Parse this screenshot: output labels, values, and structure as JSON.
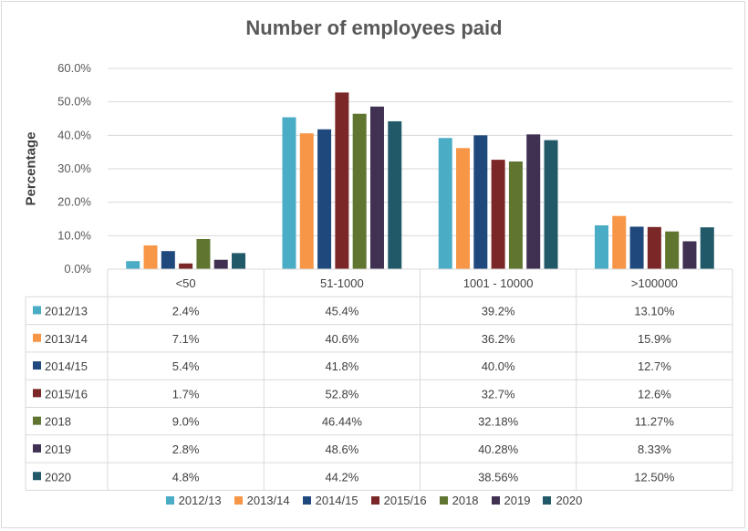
{
  "chart_data": {
    "type": "bar",
    "title": "Number of employees paid",
    "ylabel": "Percentage",
    "ylim": [
      0,
      60
    ],
    "yticks": [
      "0.0%",
      "10.0%",
      "20.0%",
      "30.0%",
      "40.0%",
      "50.0%",
      "60.0%"
    ],
    "categories": [
      "<50",
      "51-1000",
      "1001 - 10000",
      ">100000"
    ],
    "legend_position": "bottom",
    "grid": true,
    "series": [
      {
        "name": "2012/13",
        "color": "#4bacc6",
        "values": [
          2.4,
          45.4,
          39.2,
          13.1
        ],
        "labels": [
          "2.4%",
          "45.4%",
          "39.2%",
          "13.10%"
        ]
      },
      {
        "name": "2013/14",
        "color": "#f79646",
        "values": [
          7.1,
          40.6,
          36.2,
          15.9
        ],
        "labels": [
          "7.1%",
          "40.6%",
          "36.2%",
          "15.9%"
        ]
      },
      {
        "name": "2014/15",
        "color": "#1f497d",
        "values": [
          5.4,
          41.8,
          40.0,
          12.7
        ],
        "labels": [
          "5.4%",
          "41.8%",
          "40.0%",
          "12.7%"
        ]
      },
      {
        "name": "2015/16",
        "color": "#7b2727",
        "values": [
          1.7,
          52.8,
          32.7,
          12.6
        ],
        "labels": [
          "1.7%",
          "52.8%",
          "32.7%",
          "12.6%"
        ]
      },
      {
        "name": "2018",
        "color": "#5f7530",
        "values": [
          9.0,
          46.44,
          32.18,
          11.27
        ],
        "labels": [
          "9.0%",
          "46.44%",
          "32.18%",
          "11.27%"
        ]
      },
      {
        "name": "2019",
        "color": "#403152",
        "values": [
          2.8,
          48.6,
          40.28,
          8.33
        ],
        "labels": [
          "2.8%",
          "48.6%",
          "40.28%",
          "8.33%"
        ]
      },
      {
        "name": "2020",
        "color": "#215968",
        "values": [
          4.8,
          44.2,
          38.56,
          12.5
        ],
        "labels": [
          "4.8%",
          "44.2%",
          "38.56%",
          "12.50%"
        ]
      }
    ]
  }
}
